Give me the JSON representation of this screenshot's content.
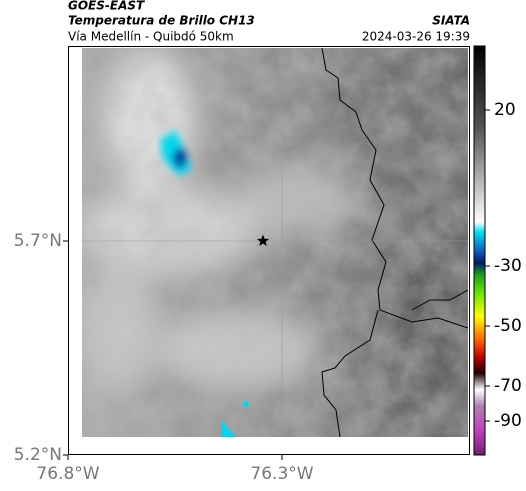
{
  "header": {
    "source": "GOES-EAST",
    "product": "Temperatura de Brillo CH13",
    "region": "Vía Medellín - Quibdó 50km",
    "agency": "SIATA",
    "timestamp": "2024-03-26 19:39"
  },
  "map": {
    "lat_ticks": [
      {
        "value": 5.7,
        "label": "5.7°N"
      },
      {
        "value": 5.2,
        "label": "5.2°N"
      }
    ],
    "lon_ticks": [
      {
        "value": -76.8,
        "label": "76.8°W"
      },
      {
        "value": -76.3,
        "label": "76.3°W"
      }
    ],
    "colorbar_ticks": [
      20,
      -30,
      -50,
      -70,
      -90
    ]
  }
}
